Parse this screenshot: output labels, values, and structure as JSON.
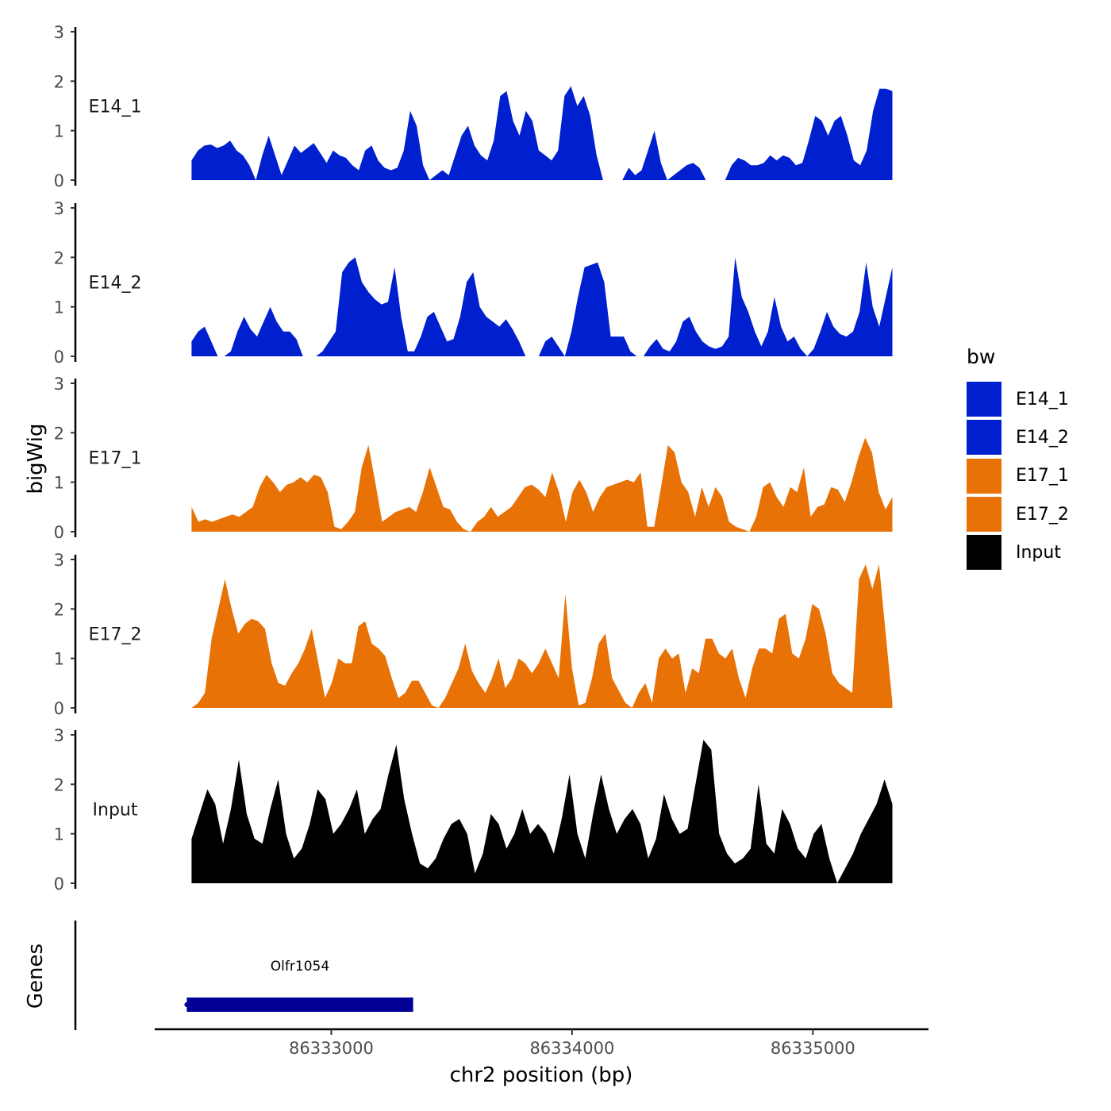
{
  "chart_data": {
    "type": "area",
    "ylabel": "bigWig",
    "xlabel": "chr2 position (bp)",
    "x_tick_labels": [
      "86333000",
      "86334000",
      "86335000"
    ],
    "x_ticks": [
      86333000,
      86334000,
      86335000
    ],
    "xlim": [
      86332267,
      86335480
    ],
    "data_xrange": [
      86332420,
      86335330
    ],
    "ylim": [
      0,
      3
    ],
    "y_ticks": [
      0,
      1,
      2,
      3
    ],
    "y_tick_labels": [
      "0",
      "1",
      "2",
      "3"
    ],
    "series": [
      {
        "name": "E14_1",
        "color": "#0020D0",
        "values": [
          0.4,
          0.6,
          0.7,
          0.72,
          0.65,
          0.7,
          0.8,
          0.6,
          0.5,
          0.3,
          0.0,
          0.5,
          0.9,
          0.5,
          0.1,
          0.4,
          0.7,
          0.55,
          0.65,
          0.75,
          0.55,
          0.35,
          0.6,
          0.5,
          0.45,
          0.3,
          0.2,
          0.6,
          0.7,
          0.4,
          0.25,
          0.2,
          0.25,
          0.6,
          1.4,
          1.1,
          0.3,
          0.0,
          0.1,
          0.2,
          0.1,
          0.5,
          0.9,
          1.1,
          0.7,
          0.5,
          0.4,
          0.8,
          1.7,
          1.8,
          1.2,
          0.9,
          1.4,
          1.2,
          0.6,
          0.5,
          0.4,
          0.6,
          1.7,
          1.9,
          1.5,
          1.7,
          1.3,
          0.5,
          0.0,
          0.0,
          0.0,
          0.0,
          0.25,
          0.1,
          0.2,
          0.6,
          1.0,
          0.35,
          0.0,
          0.1,
          0.2,
          0.3,
          0.35,
          0.25,
          0.0,
          0.0,
          0.0,
          0.0,
          0.3,
          0.45,
          0.4,
          0.3,
          0.3,
          0.35,
          0.5,
          0.4,
          0.5,
          0.45,
          0.3,
          0.35,
          0.8,
          1.3,
          1.2,
          0.9,
          1.2,
          1.3,
          0.9,
          0.4,
          0.3,
          0.6,
          1.4,
          1.85,
          1.85,
          1.8
        ]
      },
      {
        "name": "E14_2",
        "color": "#0020D0",
        "values": [
          0.3,
          0.5,
          0.6,
          0.3,
          0.0,
          0.0,
          0.1,
          0.5,
          0.8,
          0.55,
          0.4,
          0.7,
          1.0,
          0.7,
          0.5,
          0.5,
          0.35,
          0.0,
          0.0,
          0.0,
          0.1,
          0.3,
          0.5,
          1.7,
          1.9,
          2.0,
          1.5,
          1.3,
          1.15,
          1.05,
          1.1,
          1.8,
          0.8,
          0.1,
          0.1,
          0.4,
          0.8,
          0.9,
          0.6,
          0.3,
          0.35,
          0.8,
          1.5,
          1.7,
          1.0,
          0.8,
          0.7,
          0.6,
          0.75,
          0.55,
          0.3,
          0.0,
          0.0,
          0.0,
          0.3,
          0.4,
          0.2,
          0.0,
          0.5,
          1.2,
          1.8,
          1.85,
          1.9,
          1.5,
          0.4,
          0.4,
          0.4,
          0.1,
          0.0,
          0.0,
          0.2,
          0.35,
          0.15,
          0.1,
          0.3,
          0.7,
          0.8,
          0.5,
          0.3,
          0.2,
          0.15,
          0.2,
          0.4,
          2.0,
          1.2,
          0.9,
          0.5,
          0.2,
          0.5,
          1.2,
          0.6,
          0.3,
          0.4,
          0.15,
          0.0,
          0.15,
          0.5,
          0.9,
          0.6,
          0.45,
          0.4,
          0.5,
          0.9,
          1.9,
          1.0,
          0.6,
          1.2,
          1.8
        ]
      },
      {
        "name": "E17_1",
        "color": "#E87206",
        "values": [
          0.5,
          0.2,
          0.25,
          0.2,
          0.25,
          0.3,
          0.35,
          0.3,
          0.4,
          0.5,
          0.9,
          1.15,
          1.0,
          0.8,
          0.95,
          1.0,
          1.1,
          1.0,
          1.15,
          1.1,
          0.8,
          0.1,
          0.05,
          0.2,
          0.4,
          1.3,
          1.75,
          1.0,
          0.2,
          0.3,
          0.4,
          0.45,
          0.5,
          0.4,
          0.8,
          1.3,
          0.9,
          0.5,
          0.45,
          0.2,
          0.05,
          0.0,
          0.2,
          0.3,
          0.5,
          0.3,
          0.4,
          0.5,
          0.7,
          0.9,
          0.95,
          0.85,
          0.7,
          1.2,
          0.8,
          0.2,
          0.8,
          1.05,
          0.8,
          0.4,
          0.7,
          0.9,
          0.95,
          1.0,
          1.05,
          1.0,
          1.2,
          0.1,
          0.1,
          0.9,
          1.75,
          1.6,
          1.0,
          0.8,
          0.3,
          0.9,
          0.5,
          0.9,
          0.7,
          0.2,
          0.1,
          0.05,
          0.0,
          0.3,
          0.9,
          1.0,
          0.7,
          0.5,
          0.9,
          0.8,
          1.3,
          0.3,
          0.5,
          0.55,
          0.9,
          0.85,
          0.6,
          1.0,
          1.5,
          1.9,
          1.6,
          0.8,
          0.45,
          0.7
        ]
      },
      {
        "name": "E17_2",
        "color": "#E87206",
        "values": [
          0.0,
          0.1,
          0.3,
          1.4,
          2.0,
          2.6,
          2.0,
          1.5,
          1.7,
          1.8,
          1.75,
          1.6,
          0.9,
          0.5,
          0.45,
          0.7,
          0.9,
          1.2,
          1.6,
          0.9,
          0.2,
          0.5,
          1.0,
          0.9,
          0.9,
          1.65,
          1.75,
          1.3,
          1.2,
          1.05,
          0.6,
          0.2,
          0.3,
          0.55,
          0.55,
          0.3,
          0.05,
          0.0,
          0.2,
          0.5,
          0.8,
          1.3,
          0.75,
          0.5,
          0.3,
          0.6,
          1.0,
          0.4,
          0.6,
          1.0,
          0.9,
          0.7,
          0.9,
          1.2,
          0.9,
          0.6,
          2.3,
          0.8,
          0.05,
          0.1,
          0.6,
          1.3,
          1.5,
          0.6,
          0.35,
          0.1,
          0.0,
          0.3,
          0.5,
          0.1,
          1.0,
          1.2,
          1.0,
          1.1,
          0.3,
          0.8,
          0.7,
          1.4,
          1.4,
          1.1,
          1.0,
          1.2,
          0.6,
          0.2,
          0.8,
          1.2,
          1.2,
          1.1,
          1.8,
          1.9,
          1.1,
          1.0,
          1.4,
          2.1,
          2.0,
          1.5,
          0.7,
          0.5,
          0.4,
          0.3,
          2.6,
          2.9,
          2.4,
          2.9,
          1.5,
          0.1
        ]
      },
      {
        "name": "Input",
        "color": "#000000",
        "values": [
          0.9,
          1.4,
          1.9,
          1.6,
          0.8,
          1.5,
          2.5,
          1.4,
          0.9,
          0.8,
          1.5,
          2.1,
          1.0,
          0.5,
          0.7,
          1.2,
          1.9,
          1.7,
          1.0,
          1.2,
          1.5,
          1.9,
          1.0,
          1.3,
          1.5,
          2.2,
          2.8,
          1.7,
          1.0,
          0.4,
          0.3,
          0.5,
          0.9,
          1.2,
          1.3,
          1.0,
          0.2,
          0.6,
          1.4,
          1.2,
          0.7,
          1.0,
          1.5,
          1.0,
          1.2,
          1.0,
          0.6,
          1.3,
          2.2,
          1.0,
          0.5,
          1.4,
          2.2,
          1.5,
          1.0,
          1.3,
          1.5,
          1.2,
          0.5,
          0.9,
          1.8,
          1.3,
          1.0,
          1.1,
          2.0,
          2.9,
          2.7,
          1.0,
          0.6,
          0.4,
          0.5,
          0.7,
          2.0,
          0.8,
          0.6,
          1.5,
          1.2,
          0.7,
          0.5,
          1.0,
          1.2,
          0.5,
          0.0,
          0.3,
          0.6,
          1.0,
          1.3,
          1.6,
          2.1,
          1.6
        ]
      }
    ],
    "gene": {
      "panel_label": "Genes",
      "name": "Olfr1054",
      "start": 86332400,
      "end": 86333340,
      "color": "#000096"
    },
    "legend": {
      "title": "bw",
      "entries": [
        {
          "label": "E14_1",
          "color": "#0020D0"
        },
        {
          "label": "E14_2",
          "color": "#0020D0"
        },
        {
          "label": "E17_1",
          "color": "#E87206"
        },
        {
          "label": "E17_2",
          "color": "#E87206"
        },
        {
          "label": "Input",
          "color": "#000000"
        }
      ]
    }
  }
}
